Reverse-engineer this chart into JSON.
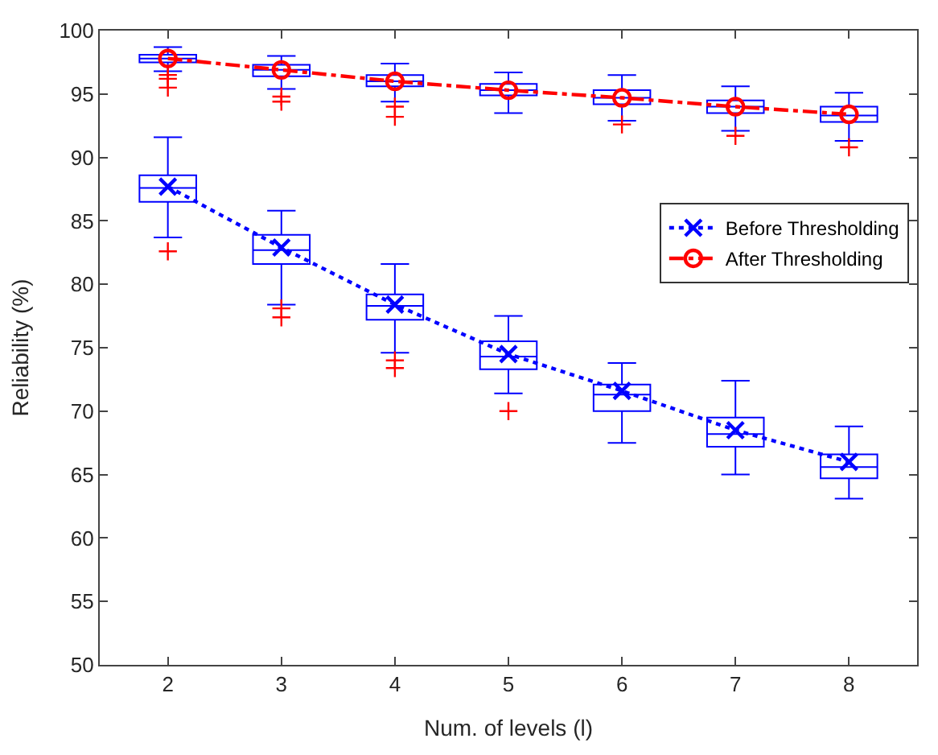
{
  "chart_data": {
    "type": "box",
    "xlabel": "Num. of levels (l)",
    "ylabel": "Reliability (%)",
    "categories": [
      "2",
      "3",
      "4",
      "5",
      "6",
      "7",
      "8"
    ],
    "ylim": [
      50,
      100
    ],
    "yticks": [
      50,
      55,
      60,
      65,
      70,
      75,
      80,
      85,
      90,
      95,
      100
    ],
    "grid": false,
    "legend": "right",
    "series": [
      {
        "color": "#0000ff",
        "boxes": [
          {
            "low": 83.7,
            "q1": 86.5,
            "median": 87.6,
            "q3": 88.6,
            "high": 91.6,
            "outliers": [
              82.6
            ]
          },
          {
            "low": 78.4,
            "q1": 81.6,
            "median": 82.7,
            "q3": 83.9,
            "high": 85.8,
            "outliers": [
              78.1,
              77.4
            ]
          },
          {
            "low": 74.6,
            "q1": 77.2,
            "median": 78.3,
            "q3": 79.2,
            "high": 81.6,
            "outliers": [
              74.0,
              73.4
            ]
          },
          {
            "low": 71.4,
            "q1": 73.3,
            "median": 74.3,
            "q3": 75.5,
            "high": 77.5,
            "outliers": [
              70.0
            ]
          },
          {
            "low": 67.5,
            "q1": 70.0,
            "median": 71.3,
            "q3": 72.1,
            "high": 73.8
          },
          {
            "low": 65.0,
            "q1": 67.2,
            "median": 68.2,
            "q3": 69.5,
            "high": 72.4
          },
          {
            "low": 63.1,
            "q1": 64.7,
            "median": 65.6,
            "q3": 66.6,
            "high": 68.8
          }
        ]
      },
      {
        "color": "#0000ff",
        "boxes": [
          {
            "low": 96.8,
            "q1": 97.5,
            "median": 97.8,
            "q3": 98.1,
            "high": 98.7,
            "outliers": [
              96.5,
              96.2,
              95.5
            ]
          },
          {
            "low": 95.4,
            "q1": 96.4,
            "median": 96.9,
            "q3": 97.3,
            "high": 98.0,
            "outliers": [
              94.8,
              94.4
            ]
          },
          {
            "low": 94.4,
            "q1": 95.6,
            "median": 96.0,
            "q3": 96.5,
            "high": 97.4,
            "outliers": [
              94.0,
              93.2
            ]
          },
          {
            "low": 93.5,
            "q1": 94.9,
            "median": 95.3,
            "q3": 95.8,
            "high": 96.7
          },
          {
            "low": 92.9,
            "q1": 94.2,
            "median": 94.7,
            "q3": 95.3,
            "high": 96.5,
            "outliers": [
              92.6
            ]
          },
          {
            "low": 92.1,
            "q1": 93.5,
            "median": 94.0,
            "q3": 94.5,
            "high": 95.6,
            "outliers": [
              91.7
            ]
          },
          {
            "low": 91.3,
            "q1": 92.8,
            "median": 93.3,
            "q3": 94.0,
            "high": 95.1,
            "outliers": [
              90.8
            ]
          }
        ]
      },
      {
        "type": "line",
        "name": "Before Thresholding",
        "color": "#0000ff",
        "values": [
          87.7,
          82.9,
          78.4,
          74.5,
          71.6,
          68.5,
          66.0
        ],
        "marker": "cross",
        "line_style": "dotted"
      },
      {
        "type": "line",
        "name": "After Thresholding",
        "color": "#ff0000",
        "values": [
          97.8,
          96.9,
          96.0,
          95.3,
          94.7,
          94.0,
          93.4
        ],
        "marker": "circle",
        "line_style": "dashed"
      }
    ]
  }
}
